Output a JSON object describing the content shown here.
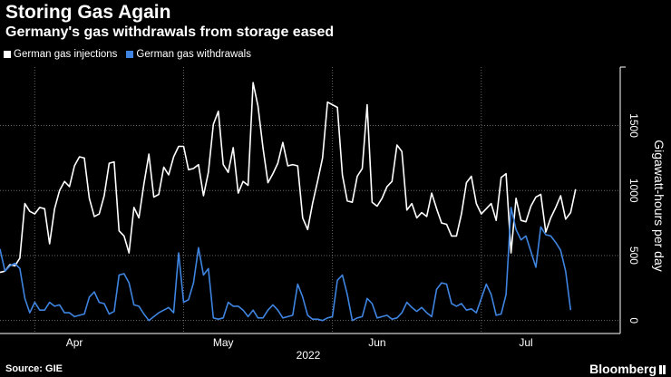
{
  "header": {
    "title": "Storing Gas Again",
    "subtitle": "Germany's gas withdrawals from storage eased"
  },
  "footer": {
    "source": "Source: GIE",
    "brand": "Bloomberg"
  },
  "colors": {
    "background": "#000000",
    "injections": "#ffffff",
    "withdrawals": "#3e84e0",
    "grid": "#555555"
  },
  "chart_data": {
    "type": "line",
    "title": "Storing Gas Again",
    "subtitle": "Germany's gas withdrawals from storage eased",
    "ylabel": "Gigawatt-hours per day",
    "xlabel": "2022",
    "x_range": [
      "2022-03-17",
      "2022-07-20"
    ],
    "ylim": [
      -100,
      1950
    ],
    "yticks": [
      0,
      500,
      1000,
      1500
    ],
    "ytick_labels": [
      "0",
      "500",
      "1000",
      "1500"
    ],
    "xtick_labels": [
      {
        "label": "Apr",
        "date": "2022-04-01"
      },
      {
        "label": "May",
        "date": "2022-05-01"
      },
      {
        "label": "Jun",
        "date": "2022-06-01"
      },
      {
        "label": "Jul",
        "date": "2022-07-01"
      }
    ],
    "x_gridlines": [
      "2022-03-24",
      "2022-04-23",
      "2022-05-23",
      "2022-06-22"
    ],
    "grid": true,
    "legend_position": "top-left",
    "series": [
      {
        "name": "German gas injections",
        "color": "#ffffff",
        "start_date": "2022-03-17",
        "values": [
          370,
          380,
          430,
          420,
          480,
          900,
          840,
          820,
          870,
          860,
          590,
          860,
          1000,
          1070,
          1030,
          1190,
          1260,
          1250,
          940,
          800,
          820,
          960,
          1210,
          1220,
          690,
          650,
          520,
          870,
          790,
          1050,
          1280,
          950,
          970,
          1180,
          1120,
          1260,
          1340,
          1340,
          1160,
          1170,
          1200,
          960,
          1140,
          1510,
          1610,
          1200,
          1140,
          1330,
          980,
          1070,
          1040,
          1830,
          1650,
          1330,
          1060,
          1130,
          1210,
          1370,
          1190,
          1200,
          1190,
          790,
          700,
          900,
          1070,
          1250,
          1680,
          1660,
          1640,
          1120,
          920,
          910,
          1110,
          1170,
          1660,
          910,
          880,
          940,
          1030,
          1070,
          1350,
          1300,
          850,
          900,
          790,
          830,
          800,
          980,
          860,
          750,
          740,
          650,
          650,
          820,
          1060,
          1110,
          900,
          820,
          860,
          900,
          770,
          1100,
          1130,
          520,
          940,
          770,
          760,
          880,
          950,
          970,
          680,
          790,
          870,
          960,
          780,
          830,
          1010
        ]
      },
      {
        "name": "German gas withdrawals",
        "color": "#3e84e0",
        "start_date": "2022-03-17",
        "values": [
          550,
          380,
          420,
          440,
          400,
          170,
          60,
          140,
          80,
          80,
          140,
          110,
          120,
          60,
          60,
          30,
          40,
          50,
          180,
          220,
          140,
          130,
          50,
          70,
          350,
          360,
          290,
          120,
          110,
          50,
          0,
          30,
          60,
          80,
          100,
          60,
          520,
          140,
          160,
          290,
          560,
          350,
          400,
          20,
          10,
          20,
          140,
          110,
          110,
          80,
          30,
          80,
          20,
          20,
          80,
          120,
          80,
          20,
          30,
          40,
          280,
          180,
          40,
          10,
          10,
          0,
          20,
          30,
          310,
          350,
          200,
          0,
          20,
          30,
          170,
          130,
          20,
          30,
          40,
          10,
          20,
          60,
          140,
          100,
          70,
          100,
          60,
          30,
          240,
          290,
          280,
          130,
          110,
          130,
          80,
          90,
          60,
          170,
          280,
          200,
          40,
          50,
          200,
          870,
          700,
          620,
          650,
          530,
          410,
          720,
          660,
          650,
          600,
          540,
          380,
          80
        ]
      }
    ]
  }
}
